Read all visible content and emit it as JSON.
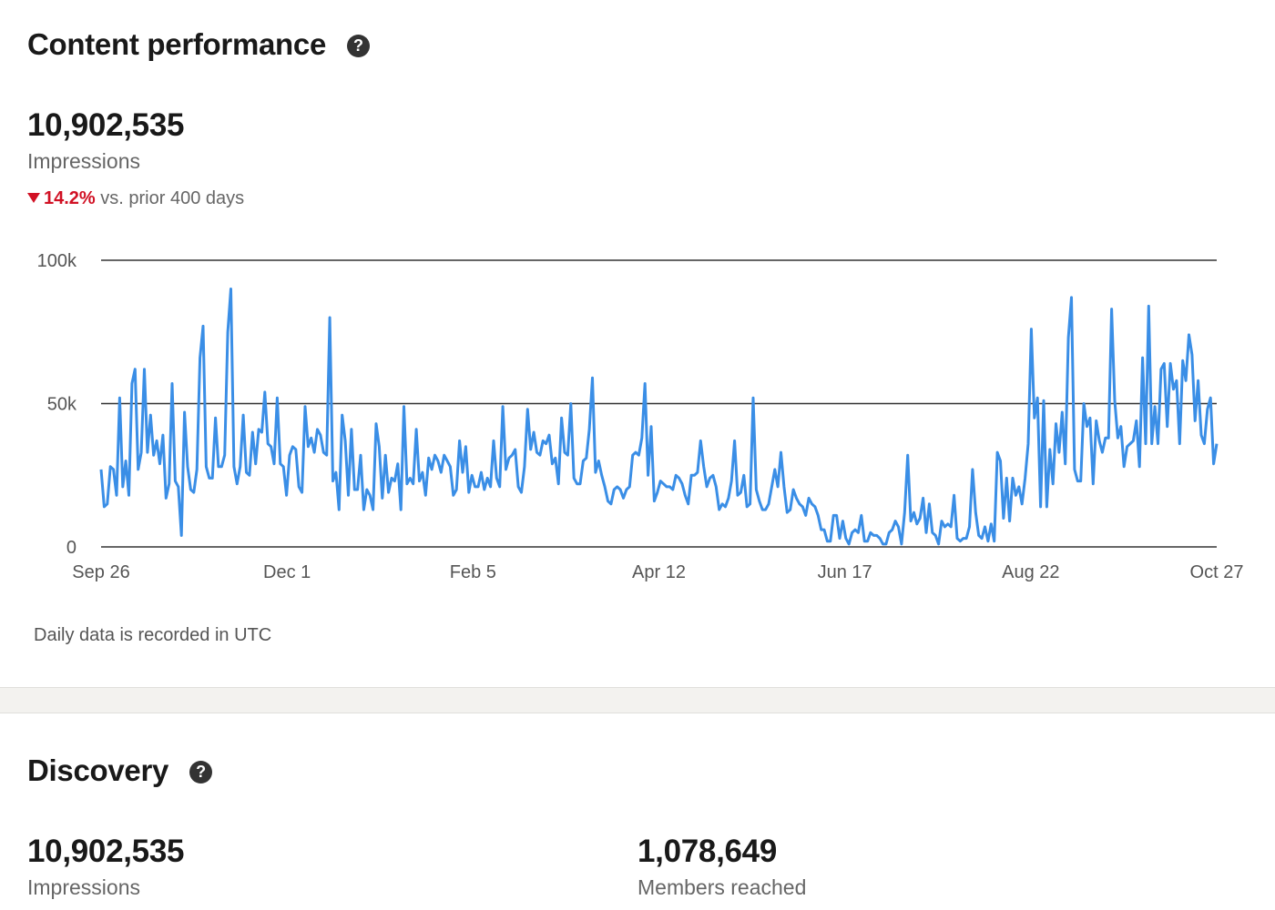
{
  "content_performance": {
    "title": "Content performance",
    "help_icon": "question-circle-icon",
    "metric_value": "10,902,535",
    "metric_label": "Impressions",
    "change_icon": "triangle-down-icon",
    "change_value": "14.2%",
    "change_text": "vs. prior 400 days",
    "footnote": "Daily data is recorded in UTC"
  },
  "discovery": {
    "title": "Discovery",
    "help_icon": "question-circle-icon",
    "metrics": [
      {
        "value": "10,902,535",
        "label": "Impressions"
      },
      {
        "value": "1,078,649",
        "label": "Members reached"
      }
    ]
  },
  "colors": {
    "line": "#3a8ee6",
    "negative": "#d11124",
    "grid": "#333333",
    "band": "#f3f2ef"
  },
  "chart_data": {
    "type": "line",
    "title": "",
    "xlabel": "",
    "ylabel": "",
    "ylim": [
      0,
      100000
    ],
    "y_ticks": [
      {
        "value": 0,
        "label": "0"
      },
      {
        "value": 50000,
        "label": "50k"
      },
      {
        "value": 100000,
        "label": "100k"
      }
    ],
    "x_ticks": [
      "Sep 26",
      "Dec 1",
      "Feb 5",
      "Apr 12",
      "Jun 17",
      "Aug 22",
      "Oct 27"
    ],
    "x_range": [
      "Sep 26",
      "Oct 27"
    ],
    "grid": "horizontal",
    "legend": "none",
    "series": [
      {
        "values_thousands": [
          27,
          14,
          15,
          28,
          27,
          18,
          52,
          21,
          30,
          18,
          57,
          62,
          27,
          33,
          62,
          33,
          46,
          32,
          37,
          29,
          39,
          17,
          22,
          57,
          23,
          21,
          4,
          47,
          28,
          20,
          19,
          27,
          66,
          77,
          28,
          24,
          24,
          45,
          28,
          28,
          32,
          75,
          90,
          28,
          22,
          28,
          46,
          26,
          25,
          40,
          29,
          41,
          40,
          54,
          36,
          35,
          29,
          52,
          29,
          28,
          18,
          32,
          35,
          34,
          21,
          19,
          49,
          35,
          38,
          33,
          41,
          39,
          33,
          32,
          80,
          23,
          26,
          13,
          46,
          37,
          18,
          41,
          20,
          20,
          32,
          13,
          20,
          18,
          13,
          43,
          35,
          17,
          32,
          19,
          24,
          23,
          29,
          13,
          49,
          22,
          24,
          22,
          41,
          23,
          26,
          18,
          31,
          27,
          32,
          30,
          26,
          32,
          30,
          28,
          18,
          20,
          37,
          26,
          35,
          19,
          25,
          21,
          21,
          26,
          20,
          24,
          21,
          37,
          24,
          21,
          49,
          27,
          31,
          32,
          34,
          21,
          19,
          28,
          48,
          34,
          40,
          33,
          32,
          37,
          36,
          39,
          29,
          31,
          22,
          45,
          33,
          32,
          50,
          24,
          22,
          22,
          30,
          31,
          41,
          59,
          26,
          30,
          25,
          21,
          16,
          15,
          20,
          21,
          20,
          17,
          20,
          21,
          32,
          33,
          32,
          38,
          57,
          25,
          42,
          16,
          19,
          23,
          22,
          21,
          21,
          20,
          25,
          24,
          22,
          18,
          15,
          25,
          25,
          26,
          37,
          28,
          21,
          24,
          25,
          21,
          13,
          15,
          14,
          17,
          23,
          37,
          18,
          19,
          25,
          14,
          15,
          52,
          20,
          16,
          13,
          13,
          15,
          21,
          27,
          21,
          33,
          21,
          12,
          13,
          20,
          17,
          15,
          14,
          11,
          17,
          15,
          14,
          11,
          6,
          6,
          2,
          2,
          11,
          11,
          3,
          9,
          3,
          1,
          5,
          6,
          5,
          11,
          2,
          2,
          5,
          4,
          4,
          3,
          1,
          1,
          5,
          6,
          9,
          7,
          1,
          12,
          32,
          9,
          12,
          8,
          10,
          17,
          5,
          15,
          5,
          4,
          1,
          9,
          7,
          8,
          7,
          18,
          3,
          2,
          3,
          3,
          7,
          27,
          12,
          4,
          3,
          7,
          2,
          8,
          2,
          33,
          30,
          10,
          24,
          9,
          24,
          18,
          21,
          15,
          24,
          36,
          76,
          45,
          52,
          14,
          51,
          14,
          34,
          22,
          43,
          33,
          47,
          29,
          73,
          87,
          27,
          23,
          23,
          50,
          42,
          45,
          22,
          44,
          37,
          33,
          38,
          38,
          83,
          51,
          38,
          42,
          28,
          35,
          36,
          37,
          44,
          28,
          66,
          36,
          84,
          36,
          49,
          36,
          62,
          64,
          42,
          64,
          55,
          58,
          36,
          65,
          58,
          74,
          67,
          44,
          58,
          39,
          36,
          48,
          52,
          29,
          36
        ]
      }
    ]
  }
}
